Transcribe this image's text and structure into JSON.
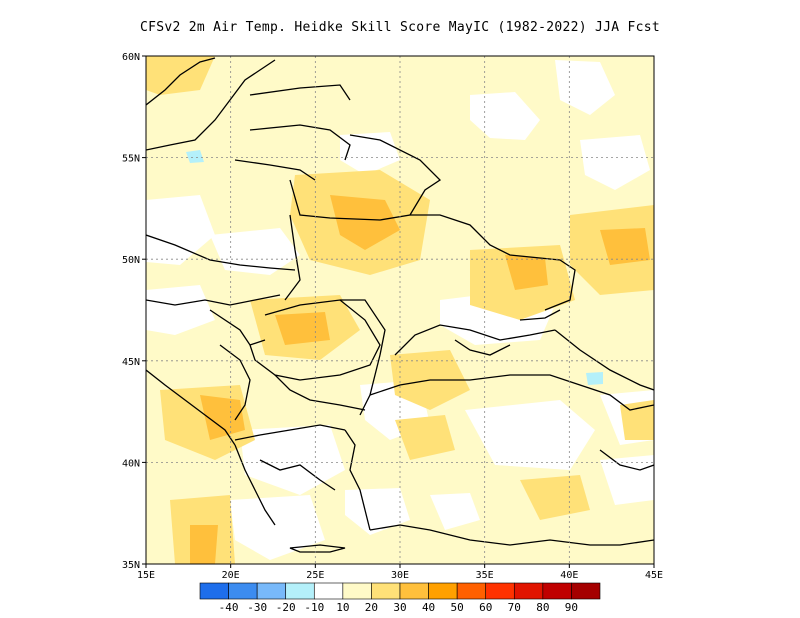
{
  "title": "CFSv2  2m Air Temp. Heidke Skill Score MayIC (1982-2022) JJA Fcst",
  "map": {
    "lon_range": [
      15,
      45
    ],
    "lat_range": [
      35,
      60
    ],
    "grid": true,
    "lon_ticks": [
      {
        "value": 15,
        "label": "15E"
      },
      {
        "value": 20,
        "label": "20E"
      },
      {
        "value": 25,
        "label": "25E"
      },
      {
        "value": 30,
        "label": "30E"
      },
      {
        "value": 35,
        "label": "35E"
      },
      {
        "value": 40,
        "label": "40E"
      },
      {
        "value": 45,
        "label": "45E"
      }
    ],
    "lat_ticks": [
      {
        "value": 60,
        "label": "60N"
      },
      {
        "value": 55,
        "label": "55N"
      },
      {
        "value": 50,
        "label": "50N"
      },
      {
        "value": 45,
        "label": "45N"
      },
      {
        "value": 40,
        "label": "40N"
      },
      {
        "value": 35,
        "label": "35N"
      }
    ]
  },
  "colorbar": {
    "bins": [
      {
        "color": "#1e6eeb"
      },
      {
        "color": "#3c8cf0"
      },
      {
        "color": "#78b9fa"
      },
      {
        "color": "#b4f0fa"
      },
      {
        "color": "#ffffff"
      },
      {
        "color": "#fffac8"
      },
      {
        "color": "#ffe178"
      },
      {
        "color": "#ffc03c"
      },
      {
        "color": "#ffa000"
      },
      {
        "color": "#ff6000"
      },
      {
        "color": "#ff3200"
      },
      {
        "color": "#e11400"
      },
      {
        "color": "#c00000"
      },
      {
        "color": "#a50000"
      }
    ],
    "labels": [
      "-40",
      "-30",
      "-20",
      "-10",
      "10",
      "20",
      "30",
      "40",
      "50",
      "60",
      "70",
      "80",
      "90"
    ]
  },
  "colors": {
    "skill_10_20": "#fffac8",
    "skill_20_30": "#ffe178",
    "skill_30_40": "#ffc03c",
    "skill_neg10_neg20": "#b4f0fa"
  }
}
